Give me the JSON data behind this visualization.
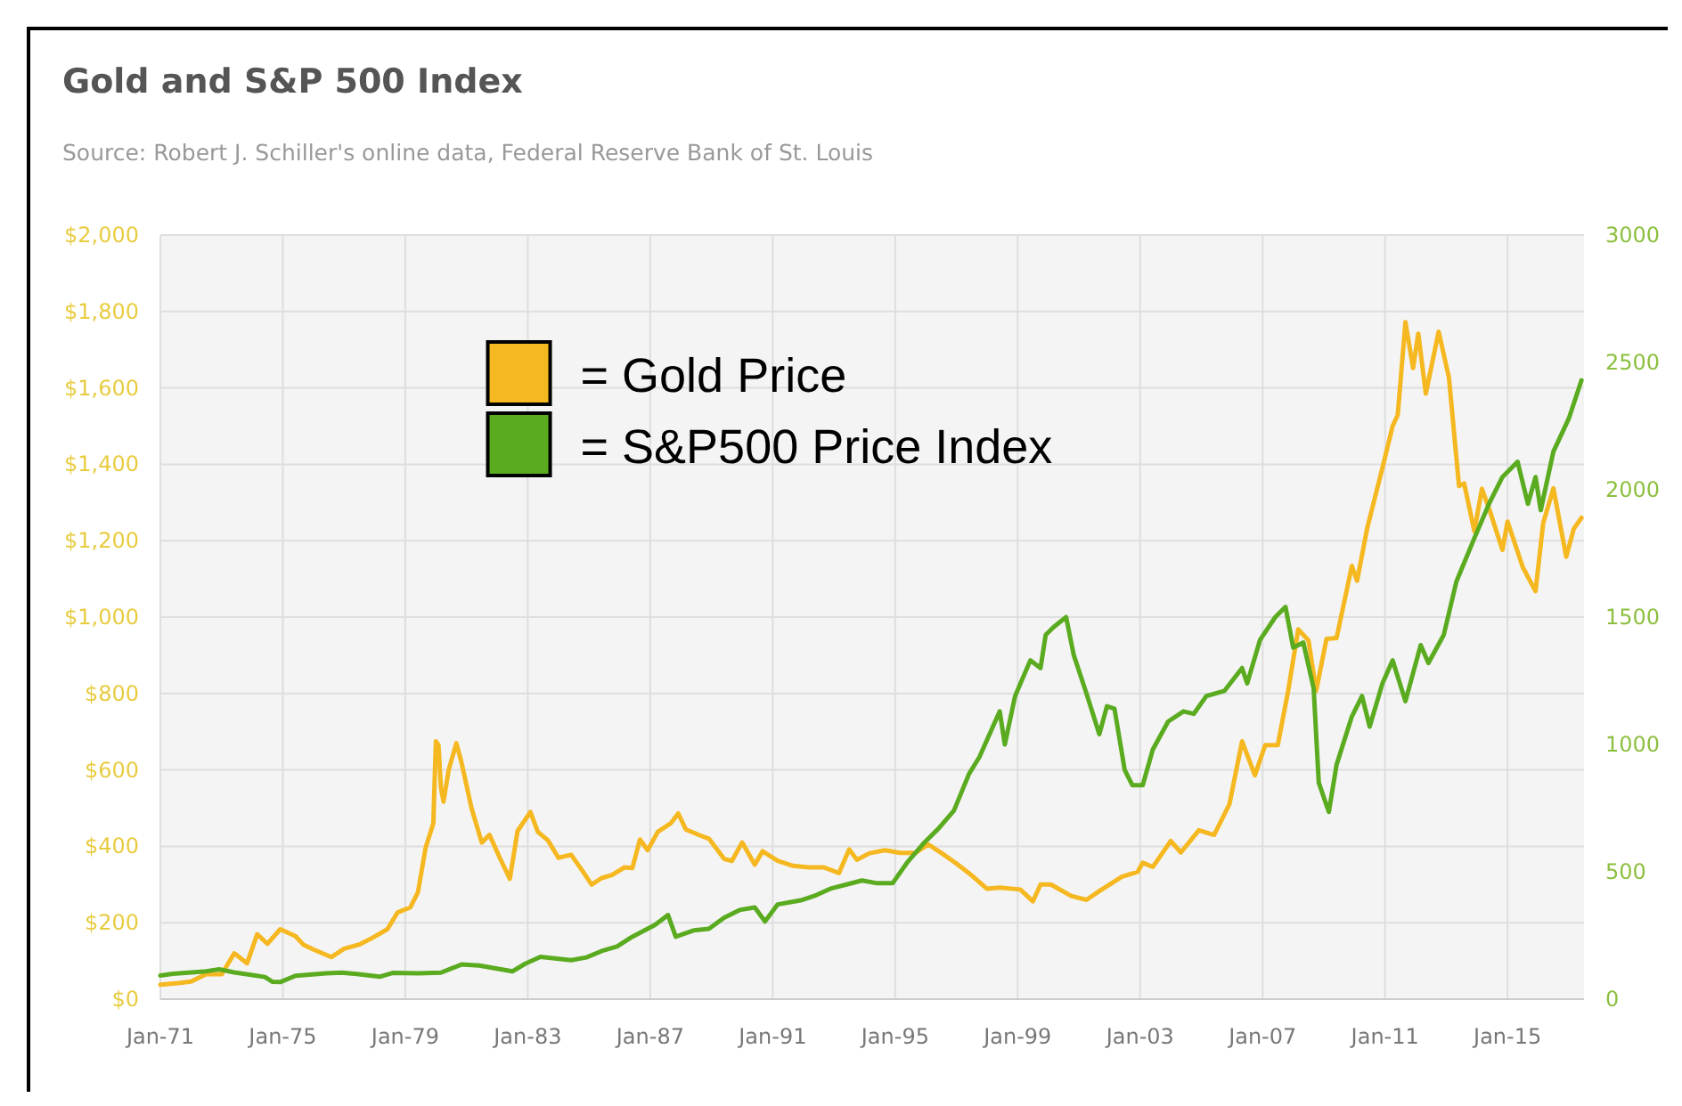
{
  "chart_data": {
    "type": "line",
    "title": "Gold and S&P 500 Index",
    "annotations": [
      "Source: Robert J. Schiller's online data, Federal Reserve Bank of St. Louis"
    ],
    "xlim": [
      "1971-01",
      "2017-07"
    ],
    "xticks": [
      {
        "value": "1971-01",
        "label": "Jan-71"
      },
      {
        "value": "1975-01",
        "label": "Jan-75"
      },
      {
        "value": "1979-01",
        "label": "Jan-79"
      },
      {
        "value": "1983-01",
        "label": "Jan-83"
      },
      {
        "value": "1987-01",
        "label": "Jan-87"
      },
      {
        "value": "1991-01",
        "label": "Jan-91"
      },
      {
        "value": "1995-01",
        "label": "Jan-95"
      },
      {
        "value": "1999-01",
        "label": "Jan-99"
      },
      {
        "value": "2003-01",
        "label": "Jan-03"
      },
      {
        "value": "2007-01",
        "label": "Jan-07"
      },
      {
        "value": "2011-01",
        "label": "Jan-11"
      },
      {
        "value": "2015-01",
        "label": "Jan-15"
      }
    ],
    "ylim": [
      0,
      2000
    ],
    "yticks": [
      {
        "value": 0,
        "label": "$0"
      },
      {
        "value": 200,
        "label": "$200"
      },
      {
        "value": 400,
        "label": "$400"
      },
      {
        "value": 600,
        "label": "$600"
      },
      {
        "value": 800,
        "label": "$800"
      },
      {
        "value": 1000,
        "label": "$1,000"
      },
      {
        "value": 1200,
        "label": "$1,200"
      },
      {
        "value": 1400,
        "label": "$1,400"
      },
      {
        "value": 1600,
        "label": "$1,600"
      },
      {
        "value": 1800,
        "label": "$1,800"
      },
      {
        "value": 2000,
        "label": "$2,000"
      }
    ],
    "y2lim": [
      0,
      3000
    ],
    "y2ticks": [
      0,
      500,
      1000,
      1500,
      2000,
      2500,
      3000
    ],
    "grid": true,
    "legend": "top",
    "marker": "none",
    "line_style": "solid",
    "series": [
      {
        "name": "= Gold Price",
        "color": "#f5b820",
        "axis": "y",
        "x": [
          "1971-01",
          "1971-08",
          "1972-01",
          "1972-07",
          "1973-01",
          "1973-06",
          "1973-11",
          "1974-03",
          "1974-07",
          "1974-12",
          "1975-06",
          "1975-09",
          "1976-01",
          "1976-08",
          "1977-01",
          "1977-07",
          "1977-12",
          "1978-06",
          "1978-10",
          "1979-03",
          "1979-06",
          "1979-09",
          "1979-12",
          "1980-01",
          "1980-02",
          "1980-03",
          "1980-04",
          "1980-06",
          "1980-09",
          "1980-11",
          "1981-03",
          "1981-07",
          "1981-10",
          "1982-02",
          "1982-06",
          "1982-09",
          "1983-02",
          "1983-05",
          "1983-09",
          "1984-01",
          "1984-06",
          "1984-10",
          "1985-02",
          "1985-06",
          "1985-10",
          "1986-03",
          "1986-06",
          "1986-09",
          "1986-12",
          "1987-04",
          "1987-09",
          "1987-12",
          "1988-03",
          "1988-08",
          "1988-12",
          "1989-06",
          "1989-09",
          "1990-01",
          "1990-06",
          "1990-09",
          "1991-03",
          "1991-09",
          "1992-03",
          "1992-09",
          "1993-03",
          "1993-07",
          "1993-10",
          "1994-03",
          "1994-09",
          "1995-03",
          "1995-09",
          "1996-02",
          "1996-07",
          "1997-01",
          "1997-07",
          "1998-01",
          "1998-06",
          "1999-02",
          "1999-07",
          "1999-10",
          "2000-02",
          "2000-10",
          "2001-04",
          "2001-09",
          "2002-06",
          "2002-12",
          "2003-02",
          "2003-06",
          "2004-01",
          "2004-05",
          "2004-12",
          "2005-06",
          "2005-12",
          "2006-05",
          "2006-10",
          "2007-02",
          "2007-07",
          "2007-11",
          "2008-03",
          "2008-07",
          "2008-10",
          "2009-02",
          "2009-06",
          "2009-12",
          "2010-02",
          "2010-06",
          "2010-12",
          "2011-04",
          "2011-06",
          "2011-09",
          "2011-12",
          "2012-02",
          "2012-05",
          "2012-10",
          "2013-02",
          "2013-06",
          "2013-08",
          "2013-12",
          "2014-03",
          "2014-06",
          "2014-11",
          "2015-01",
          "2015-07",
          "2015-12",
          "2016-03",
          "2016-07",
          "2016-12",
          "2017-03",
          "2017-06"
        ],
        "values": [
          38,
          42,
          46,
          65,
          65,
          120,
          94,
          170,
          145,
          183,
          165,
          143,
          130,
          110,
          132,
          143,
          160,
          183,
          227,
          240,
          280,
          397,
          460,
          675,
          665,
          554,
          517,
          600,
          670,
          620,
          500,
          410,
          430,
          370,
          315,
          440,
          490,
          438,
          415,
          370,
          378,
          340,
          300,
          317,
          325,
          345,
          343,
          418,
          390,
          438,
          460,
          486,
          444,
          430,
          420,
          367,
          362,
          410,
          352,
          387,
          362,
          349,
          345,
          345,
          330,
          392,
          365,
          382,
          390,
          383,
          383,
          405,
          383,
          355,
          324,
          289,
          292,
          287,
          256,
          300,
          300,
          270,
          260,
          283,
          321,
          333,
          357,
          346,
          414,
          384,
          442,
          430,
          510,
          675,
          586,
          665,
          665,
          806,
          968,
          939,
          807,
          943,
          945,
          1134,
          1095,
          1232,
          1391,
          1500,
          1529,
          1772,
          1652,
          1742,
          1585,
          1747,
          1627,
          1343,
          1350,
          1225,
          1336,
          1280,
          1176,
          1250,
          1131,
          1068,
          1246,
          1337,
          1158,
          1231,
          1260
        ]
      },
      {
        "name": "= S&P500 Price Index",
        "color": "#5aab1f",
        "axis": "y2",
        "x": [
          "1971-01",
          "1971-06",
          "1972-06",
          "1972-12",
          "1973-06",
          "1973-12",
          "1974-06",
          "1974-09",
          "1974-12",
          "1975-06",
          "1976-06",
          "1976-12",
          "1977-06",
          "1978-03",
          "1978-08",
          "1979-06",
          "1980-03",
          "1980-11",
          "1981-06",
          "1982-07",
          "1982-12",
          "1983-06",
          "1984-06",
          "1984-12",
          "1985-06",
          "1985-12",
          "1986-06",
          "1987-03",
          "1987-08",
          "1987-11",
          "1988-06",
          "1988-12",
          "1989-06",
          "1989-12",
          "1990-06",
          "1990-10",
          "1991-03",
          "1991-12",
          "1992-06",
          "1992-12",
          "1993-06",
          "1993-12",
          "1994-06",
          "1994-12",
          "1995-06",
          "1995-12",
          "1996-06",
          "1996-12",
          "1997-06",
          "1997-10",
          "1998-06",
          "1998-08",
          "1998-12",
          "1999-06",
          "1999-10",
          "1999-12",
          "2000-03",
          "2000-08",
          "2000-11",
          "2001-04",
          "2001-09",
          "2001-12",
          "2002-03",
          "2002-07",
          "2002-10",
          "2003-02",
          "2003-06",
          "2003-12",
          "2004-06",
          "2004-10",
          "2005-03",
          "2005-10",
          "2006-05",
          "2006-07",
          "2006-12",
          "2007-06",
          "2007-10",
          "2008-01",
          "2008-05",
          "2008-09",
          "2008-11",
          "2009-03",
          "2009-06",
          "2009-12",
          "2010-04",
          "2010-07",
          "2010-12",
          "2011-04",
          "2011-09",
          "2012-03",
          "2012-06",
          "2012-12",
          "2013-05",
          "2013-12",
          "2014-06",
          "2014-11",
          "2015-05",
          "2015-09",
          "2015-12",
          "2016-02",
          "2016-07",
          "2017-01",
          "2017-06"
        ],
        "values": [
          93,
          100,
          108,
          117,
          105,
          96,
          87,
          68,
          67,
          92,
          101,
          104,
          99,
          88,
          103,
          101,
          104,
          136,
          132,
          109,
          139,
          166,
          153,
          164,
          189,
          207,
          245,
          292,
          330,
          245,
          270,
          276,
          320,
          350,
          360,
          305,
          372,
          388,
          408,
          435,
          450,
          466,
          455,
          455,
          540,
          610,
          670,
          740,
          885,
          950,
          1130,
          1000,
          1190,
          1330,
          1300,
          1430,
          1460,
          1500,
          1350,
          1200,
          1040,
          1150,
          1140,
          900,
          840,
          840,
          980,
          1090,
          1130,
          1120,
          1190,
          1210,
          1300,
          1240,
          1410,
          1500,
          1540,
          1380,
          1400,
          1220,
          850,
          735,
          920,
          1110,
          1190,
          1070,
          1240,
          1330,
          1170,
          1390,
          1320,
          1430,
          1640,
          1810,
          1950,
          2050,
          2110,
          1945,
          2050,
          1920,
          2150,
          2280,
          2430
        ]
      }
    ]
  }
}
